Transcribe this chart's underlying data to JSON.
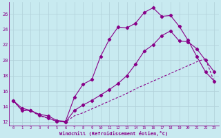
{
  "xlabel": "Windchill (Refroidissement éolien,°C)",
  "background_color": "#c8eaf0",
  "grid_color": "#b0d0d8",
  "line_color": "#880088",
  "xlim": [
    -0.5,
    23.5
  ],
  "ylim": [
    11.5,
    27.5
  ],
  "yticks": [
    12,
    14,
    16,
    18,
    20,
    22,
    24,
    26
  ],
  "xticks": [
    0,
    1,
    2,
    3,
    4,
    5,
    6,
    7,
    8,
    9,
    10,
    11,
    12,
    13,
    14,
    15,
    16,
    17,
    18,
    19,
    20,
    21,
    22,
    23
  ],
  "series1_x": [
    0,
    1,
    2,
    3,
    4,
    5,
    6,
    7,
    8,
    9,
    10,
    11,
    12,
    13,
    14,
    15,
    16,
    17,
    18,
    19,
    20,
    21,
    22,
    23
  ],
  "series1_y": [
    14.8,
    13.8,
    13.5,
    13.0,
    12.8,
    12.2,
    12.1,
    15.2,
    16.9,
    17.5,
    20.5,
    22.7,
    24.3,
    24.2,
    24.8,
    26.2,
    26.8,
    25.7,
    25.8,
    24.4,
    22.6,
    20.5,
    18.5,
    17.3
  ],
  "series2_x": [
    0,
    1,
    2,
    3,
    4,
    5,
    6,
    7,
    8,
    9,
    10,
    11,
    12,
    13,
    14,
    15,
    16,
    17,
    18,
    19,
    20,
    21,
    22,
    23
  ],
  "series2_y": [
    14.8,
    13.5,
    13.5,
    12.9,
    12.5,
    12.1,
    12.0,
    13.5,
    14.2,
    14.8,
    15.5,
    16.2,
    17.0,
    18.0,
    19.5,
    21.2,
    22.0,
    23.2,
    23.8,
    22.5,
    22.4,
    21.5,
    20.0,
    18.5
  ],
  "series3_x": [
    0,
    1,
    2,
    3,
    4,
    5,
    6,
    7,
    8,
    9,
    10,
    11,
    12,
    13,
    14,
    15,
    16,
    17,
    18,
    19,
    20,
    21,
    22,
    23
  ],
  "series3_y": [
    14.8,
    13.5,
    13.5,
    12.8,
    12.5,
    12.1,
    12.0,
    12.8,
    13.2,
    13.7,
    14.2,
    14.7,
    15.2,
    15.7,
    16.3,
    16.8,
    17.3,
    17.8,
    18.3,
    18.8,
    19.3,
    19.8,
    20.2,
    17.2
  ]
}
